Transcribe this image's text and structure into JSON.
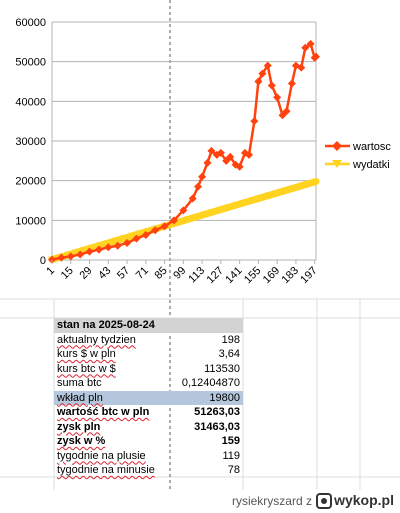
{
  "chart_data": {
    "type": "line",
    "title": "",
    "xlabel": "",
    "ylabel": "",
    "ylim": [
      0,
      60000
    ],
    "yticks": [
      0,
      10000,
      20000,
      30000,
      40000,
      50000,
      60000
    ],
    "ytick_labels": [
      "0",
      "10000",
      "20000",
      "30000",
      "40000",
      "50000",
      "60000"
    ],
    "xlim": [
      1,
      198
    ],
    "xticks": [
      1,
      15,
      29,
      43,
      57,
      71,
      85,
      99,
      113,
      127,
      141,
      155,
      169,
      183,
      197
    ],
    "xtick_labels": [
      "1",
      "15",
      "29",
      "43",
      "57",
      "71",
      "85",
      "99",
      "113",
      "127",
      "141",
      "155",
      "169",
      "183",
      "197"
    ],
    "grid": true,
    "legend": "right",
    "series": [
      {
        "name": "wartosc",
        "color": "#ff420e",
        "marker": "diamond",
        "x": [
          1,
          8,
          15,
          22,
          29,
          36,
          43,
          50,
          57,
          64,
          71,
          78,
          85,
          92,
          99,
          106,
          110,
          113,
          117,
          120,
          124,
          127,
          131,
          134,
          138,
          141,
          145,
          148,
          152,
          155,
          158,
          162,
          165,
          169,
          173,
          176,
          180,
          183,
          187,
          190,
          194,
          197,
          198
        ],
        "y": [
          100,
          600,
          900,
          1400,
          2100,
          2600,
          3200,
          3600,
          4300,
          5400,
          6300,
          7500,
          8500,
          10000,
          12500,
          15500,
          18500,
          21000,
          24500,
          27500,
          26500,
          27000,
          25000,
          26000,
          24000,
          23500,
          27000,
          26500,
          35000,
          45000,
          47000,
          49000,
          44000,
          41000,
          36500,
          37500,
          44500,
          49000,
          48500,
          53500,
          54500,
          51000,
          51263
        ]
      },
      {
        "name": "wydatki",
        "color": "#ffd320",
        "marker": "triangle-down",
        "x": [
          1,
          198
        ],
        "y": [
          100,
          19800
        ]
      }
    ]
  },
  "table": {
    "header": "stan na 2025-08-24",
    "rows": [
      {
        "label": "aktualny tydzien",
        "value": "198"
      },
      {
        "label": "kurs $ w pln",
        "value": "3,64"
      },
      {
        "label": "kurs btc w $",
        "value": "113530"
      },
      {
        "label": "suma btc",
        "value": "0,12404870"
      },
      {
        "label": "wkład pln",
        "value": "19800"
      },
      {
        "label": "wartość btc w pln",
        "value": "51263,03"
      },
      {
        "label": "zysk pln",
        "value": "31463,03"
      },
      {
        "label": "zysk w %",
        "value": "159"
      },
      {
        "label": "tygodnie na plusie",
        "value": "119"
      },
      {
        "label": "tygodnie na minusie",
        "value": "78"
      }
    ]
  },
  "footer": {
    "username": "rysiekryszard",
    "letter": "z",
    "brand": "wykop.pl"
  }
}
